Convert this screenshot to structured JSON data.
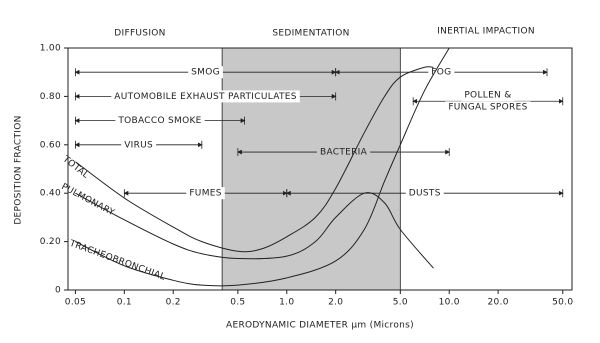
{
  "chart_data": {
    "type": "line",
    "log_x": true,
    "region_labels": [
      "DIFFUSION",
      "SEDIMENTATION",
      "INERTIAL IMPACTION"
    ],
    "xlabel": "AERODYNAMIC DIAMETER µm (Microns)",
    "ylabel": "DEPOSITION FRACTION",
    "xlim": [
      0.045,
      57
    ],
    "ylim": [
      0,
      1
    ],
    "xticks": [
      0.05,
      0.1,
      0.2,
      0.5,
      {
        "value": 1,
        "label": "1.0"
      },
      {
        "value": 2,
        "label": "2.0"
      },
      {
        "value": 5,
        "label": "5.0"
      },
      {
        "value": 10,
        "label": "10.0"
      },
      {
        "value": 20,
        "label": "20.0"
      },
      {
        "value": 50,
        "label": "50.0"
      }
    ],
    "yticks": [
      0,
      {
        "value": 0.2,
        "label": "0.20"
      },
      {
        "value": 0.4,
        "label": "0.40"
      },
      {
        "value": 0.6,
        "label": "0.60"
      },
      {
        "value": 0.8,
        "label": "0.80"
      },
      {
        "value": 1,
        "label": "1.00"
      }
    ],
    "shaded_range": [
      0.4,
      5
    ],
    "shade_color": "#c8c8c8",
    "series": [
      {
        "name": "TOTAL",
        "color": "#222222",
        "x": [
          0.05,
          0.1,
          0.2,
          0.3,
          0.5,
          0.7,
          1,
          1.5,
          2,
          3,
          4,
          5,
          7,
          8
        ],
        "values": [
          0.53,
          0.38,
          0.26,
          0.2,
          0.16,
          0.17,
          0.22,
          0.3,
          0.42,
          0.65,
          0.8,
          0.88,
          0.92,
          0.92
        ]
      },
      {
        "name": "PULMONARY",
        "color": "#222222",
        "x": [
          0.05,
          0.1,
          0.2,
          0.3,
          0.5,
          1,
          1.5,
          2,
          3,
          4,
          5,
          8
        ],
        "values": [
          0.4,
          0.29,
          0.19,
          0.15,
          0.13,
          0.14,
          0.2,
          0.3,
          0.4,
          0.36,
          0.25,
          0.09
        ]
      },
      {
        "name": "TRACHEOBRONCHIAL",
        "color": "#222222",
        "x": [
          0.05,
          0.1,
          0.2,
          0.3,
          0.5,
          1,
          2,
          3,
          4,
          5,
          7,
          10
        ],
        "values": [
          0.2,
          0.1,
          0.04,
          0.02,
          0.02,
          0.05,
          0.12,
          0.25,
          0.45,
          0.6,
          0.82,
          1
        ]
      }
    ],
    "ranges": [
      {
        "label": [
          "SMOG"
        ],
        "start": 0.05,
        "end": 2,
        "y": 0.9
      },
      {
        "label": [
          "FOG"
        ],
        "start": 2,
        "end": 40,
        "y": 0.9
      },
      {
        "label": [
          "AUTOMOBILE EXHAUST PARTICULATES"
        ],
        "start": 0.05,
        "end": 2,
        "y": 0.8
      },
      {
        "label": [
          "POLLEN &",
          "FUNGAL SPORES"
        ],
        "start": 6,
        "end": 50,
        "y": 0.78
      },
      {
        "label": [
          "TOBACCO SMOKE"
        ],
        "start": 0.05,
        "end": 0.55,
        "y": 0.7
      },
      {
        "label": [
          "VIRUS"
        ],
        "start": 0.05,
        "end": 0.3,
        "y": 0.6
      },
      {
        "label": [
          "BACTERIA"
        ],
        "start": 0.5,
        "end": 10,
        "y": 0.57
      },
      {
        "label": [
          "FUMES"
        ],
        "start": 0.1,
        "end": 1,
        "y": 0.4
      },
      {
        "label": [
          "DUSTS"
        ],
        "start": 1,
        "end": 50,
        "y": 0.4
      }
    ]
  }
}
